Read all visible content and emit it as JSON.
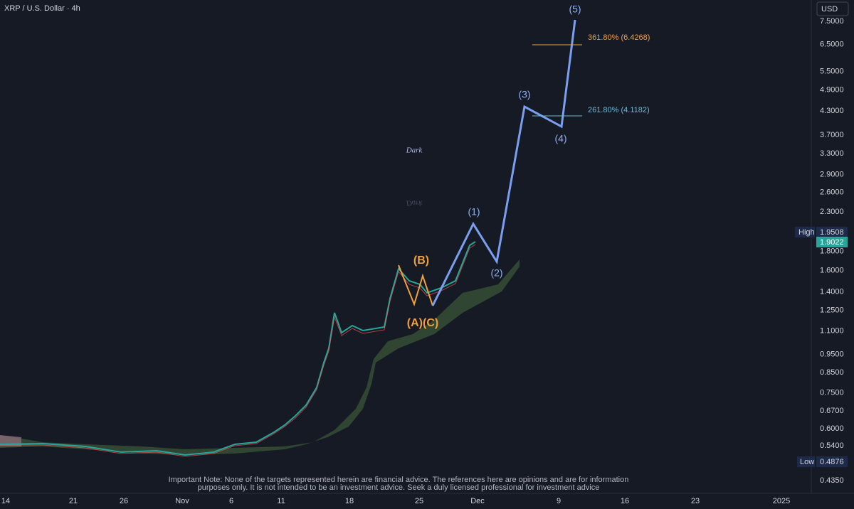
{
  "header": {
    "title": "XRP / U.S. Dollar · 4h",
    "currency": "USD"
  },
  "yaxis": [
    {
      "value": 7.5,
      "label": "7.5000"
    },
    {
      "value": 6.5,
      "label": "6.5000"
    },
    {
      "value": 5.5,
      "label": "5.5000"
    },
    {
      "value": 4.9,
      "label": "4.9000"
    },
    {
      "value": 4.3,
      "label": "4.3000"
    },
    {
      "value": 3.7,
      "label": "3.7000"
    },
    {
      "value": 3.3,
      "label": "3.3000"
    },
    {
      "value": 2.9,
      "label": "2.9000"
    },
    {
      "value": 2.6,
      "label": "2.6000"
    },
    {
      "value": 2.3,
      "label": "2.3000"
    },
    {
      "value": 1.8,
      "label": "1.8000"
    },
    {
      "value": 1.6,
      "label": "1.6000"
    },
    {
      "value": 1.4,
      "label": "1.4000"
    },
    {
      "value": 1.25,
      "label": "1.2500"
    },
    {
      "value": 1.1,
      "label": "1.1000"
    },
    {
      "value": 0.95,
      "label": "0.9500"
    },
    {
      "value": 0.85,
      "label": "0.8500"
    },
    {
      "value": 0.75,
      "label": "0.7500"
    },
    {
      "value": 0.67,
      "label": "0.6700"
    },
    {
      "value": 0.6,
      "label": "0.6000"
    },
    {
      "value": 0.54,
      "label": "0.5400"
    },
    {
      "value": 0.435,
      "label": "0.4350"
    }
  ],
  "xaxis": [
    "14",
    "21",
    "26",
    "Nov",
    "6",
    "11",
    "18",
    "25",
    "Dec",
    "9",
    "16",
    "23",
    "2025"
  ],
  "price_tags": {
    "high_label": "High",
    "high": "1.9508",
    "last": "1.9022",
    "low_label": "Low",
    "low": "0.4876"
  },
  "waves": {
    "w1": "(1)",
    "w2": "(2)",
    "w3": "(3)",
    "w4": "(4)",
    "w5": "(5)",
    "a_c": "(A)(C)",
    "b": "(B)"
  },
  "fib": {
    "f3618": "361.80% (6.4268)",
    "f2618": "261.80% (4.1182)"
  },
  "watermark": "Dark",
  "note": {
    "line1": "Important Note: None of the targets represented herein are financial advice. The references here are opinions and are for information",
    "line2": "purposes only. It is not intended to be an investment advice. Seek a duly licensed professional for investment advice"
  }
}
